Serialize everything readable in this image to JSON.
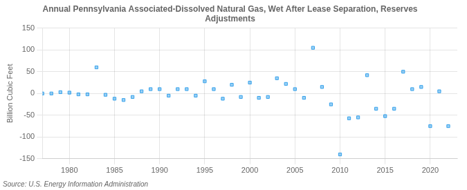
{
  "chart_data": {
    "type": "scatter",
    "title": "Annual Pennsylvania Associated-Dissolved Natural Gas, Wet After Lease Separation, Reserves\nAdjustments",
    "ylabel": "Billion Cubic Feet",
    "source": "Source: U.S. Energy Information Administration",
    "x": [
      1977,
      1978,
      1979,
      1980,
      1981,
      1982,
      1983,
      1984,
      1985,
      1986,
      1987,
      1988,
      1989,
      1990,
      1991,
      1992,
      1993,
      1994,
      1995,
      1996,
      1997,
      1998,
      1999,
      2000,
      2001,
      2002,
      2003,
      2004,
      2005,
      2006,
      2007,
      2008,
      2009,
      2010,
      2011,
      2012,
      2013,
      2014,
      2015,
      2016,
      2017,
      2018,
      2019,
      2020,
      2021,
      2022
    ],
    "values": [
      0,
      0,
      3,
      2,
      -2,
      -2,
      60,
      -3,
      -12,
      -15,
      -8,
      5,
      10,
      10,
      -5,
      10,
      10,
      -5,
      28,
      10,
      -12,
      20,
      -8,
      25,
      -10,
      -8,
      35,
      22,
      10,
      -10,
      105,
      15,
      -25,
      -140,
      -57,
      -55,
      42,
      -35,
      -52,
      -35,
      50,
      10,
      15,
      -75,
      5,
      -75
    ],
    "xlim": [
      1977,
      2023
    ],
    "xticks": [
      1980,
      1985,
      1990,
      1995,
      2000,
      2005,
      2010,
      2015,
      2020
    ],
    "ylim": [
      -150,
      150
    ],
    "yticks": [
      -150,
      -100,
      -50,
      0,
      50,
      100,
      150
    ],
    "grid": true,
    "marker": "square"
  }
}
